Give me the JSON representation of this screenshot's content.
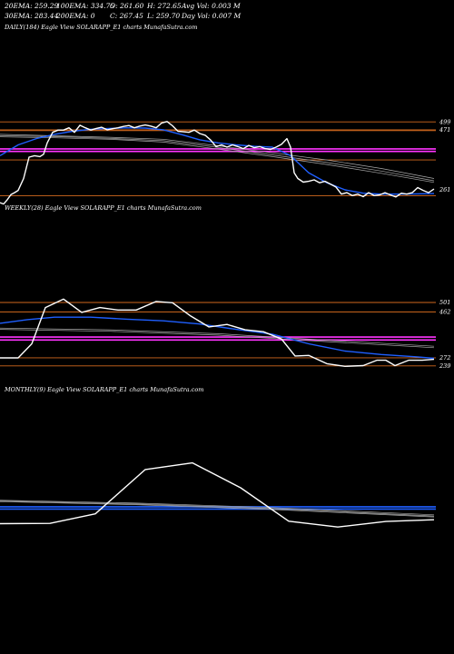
{
  "header": {
    "row1": [
      "20EMA: 259.29",
      "100EMA: 334.75",
      "O: 261.60",
      "H: 272.65",
      "Avg Vol: 0.003 M"
    ],
    "row2": [
      "30EMA: 283.44",
      "200EMA: 0",
      "C: 267.45",
      "L: 259.70",
      "Day Vol: 0.007 M"
    ]
  },
  "colors": {
    "background": "#000000",
    "price": "#ffffff",
    "ema_blue": "#1f5fff",
    "level_orange": "#d2691e",
    "level_magenta": "#ff33ff",
    "ma_gray": "#aaaaaa"
  },
  "chart_data": [
    {
      "type": "line",
      "title": "DAILY(184) Eagle  View  SOLARAPP_E1 charts MunafaSutra.com",
      "ylabels": [
        "499",
        "471",
        "261"
      ],
      "ylim": [
        145,
        640
      ],
      "levels": [
        {
          "value": 499,
          "color": "orange"
        },
        {
          "value": 471,
          "color": "orange"
        },
        {
          "value": 468,
          "color": "orange"
        },
        {
          "value": 404,
          "color": "magenta"
        },
        {
          "value": 395,
          "color": "magenta"
        },
        {
          "value": 365,
          "color": "orange"
        },
        {
          "value": 239,
          "color": "orange"
        }
      ],
      "series": [
        {
          "role": "close",
          "color": "white",
          "points": [
            [
              0,
              215
            ],
            [
              4,
              210
            ],
            [
              8,
              225
            ],
            [
              12,
              243
            ],
            [
              16,
              250
            ],
            [
              20,
              258
            ],
            [
              26,
              300
            ],
            [
              32,
              375
            ],
            [
              38,
              380
            ],
            [
              44,
              377
            ],
            [
              48,
              385
            ],
            [
              52,
              425
            ],
            [
              58,
              462
            ],
            [
              64,
              470
            ],
            [
              70,
              470
            ],
            [
              76,
              478
            ],
            [
              82,
              462
            ],
            [
              88,
              487
            ],
            [
              94,
              478
            ],
            [
              100,
              470
            ],
            [
              106,
              476
            ],
            [
              112,
              480
            ],
            [
              118,
              471
            ],
            [
              124,
              475
            ],
            [
              130,
              478
            ],
            [
              136,
              483
            ],
            [
              142,
              486
            ],
            [
              148,
              478
            ],
            [
              154,
              484
            ],
            [
              160,
              488
            ],
            [
              166,
              484
            ],
            [
              172,
              478
            ],
            [
              178,
              495
            ],
            [
              184,
              500
            ],
            [
              190,
              485
            ],
            [
              196,
              466
            ],
            [
              202,
              464
            ],
            [
              208,
              462
            ],
            [
              214,
              470
            ],
            [
              220,
              458
            ],
            [
              226,
              452
            ],
            [
              232,
              435
            ],
            [
              238,
              412
            ],
            [
              244,
              418
            ],
            [
              250,
              410
            ],
            [
              256,
              418
            ],
            [
              262,
              412
            ],
            [
              268,
              405
            ],
            [
              274,
              416
            ],
            [
              280,
              408
            ],
            [
              286,
              412
            ],
            [
              292,
              405
            ],
            [
              298,
              402
            ],
            [
              304,
              410
            ],
            [
              310,
              420
            ],
            [
              316,
              440
            ],
            [
              320,
              410
            ],
            [
              324,
              320
            ],
            [
              328,
              300
            ],
            [
              334,
              287
            ],
            [
              340,
              290
            ],
            [
              346,
              295
            ],
            [
              352,
              285
            ],
            [
              358,
              290
            ],
            [
              364,
              280
            ],
            [
              370,
              270
            ],
            [
              376,
              245
            ],
            [
              382,
              250
            ],
            [
              388,
              240
            ],
            [
              394,
              245
            ],
            [
              400,
              236
            ],
            [
              406,
              250
            ],
            [
              412,
              240
            ],
            [
              418,
              242
            ],
            [
              424,
              250
            ],
            [
              430,
              242
            ],
            [
              436,
              235
            ],
            [
              442,
              248
            ],
            [
              448,
              245
            ],
            [
              454,
              250
            ],
            [
              460,
              268
            ],
            [
              466,
              258
            ],
            [
              472,
              250
            ],
            [
              478,
              263
            ]
          ]
        },
        {
          "role": "ema_blue",
          "color": "blue",
          "points": [
            [
              0,
              380
            ],
            [
              20,
              418
            ],
            [
              40,
              440
            ],
            [
              60,
              455
            ],
            [
              80,
              466
            ],
            [
              100,
              473
            ],
            [
              120,
              476
            ],
            [
              140,
              478
            ],
            [
              160,
              477
            ],
            [
              180,
              471
            ],
            [
              200,
              454
            ],
            [
              220,
              436
            ],
            [
              240,
              425
            ],
            [
              260,
              418
            ],
            [
              280,
              413
            ],
            [
              300,
              410
            ],
            [
              320,
              380
            ],
            [
              340,
              320
            ],
            [
              360,
              285
            ],
            [
              380,
              260
            ],
            [
              400,
              248
            ],
            [
              420,
              245
            ],
            [
              440,
              245
            ],
            [
              460,
              246
            ],
            [
              478,
              247
            ]
          ]
        },
        {
          "role": "ma_gray_1",
          "color": "gray",
          "points": [
            [
              0,
              455
            ],
            [
              60,
              450
            ],
            [
              120,
              445
            ],
            [
              180,
              438
            ],
            [
              240,
              415
            ],
            [
              300,
              390
            ],
            [
              360,
              365
            ],
            [
              420,
              335
            ],
            [
              478,
              300
            ]
          ]
        },
        {
          "role": "ma_gray_2",
          "color": "gray",
          "points": [
            [
              0,
              450
            ],
            [
              60,
              447
            ],
            [
              120,
              441
            ],
            [
              180,
              433
            ],
            [
              240,
              409
            ],
            [
              300,
              383
            ],
            [
              360,
              356
            ],
            [
              420,
              326
            ],
            [
              478,
              292
            ]
          ]
        },
        {
          "role": "ma_gray_3",
          "color": "gray",
          "points": [
            [
              0,
              446
            ],
            [
              60,
              443
            ],
            [
              120,
              438
            ],
            [
              180,
              428
            ],
            [
              240,
              403
            ],
            [
              300,
              377
            ],
            [
              360,
              349
            ],
            [
              420,
              318
            ],
            [
              478,
              286
            ]
          ]
        }
      ]
    },
    {
      "type": "line",
      "title": "WEEKLY(28) Eagle  View  SOLARAPP_E1 charts MunafaSutra.com",
      "ylabels": [
        "501",
        "462",
        "272",
        "239"
      ],
      "ylim": [
        118,
        700
      ],
      "levels": [
        {
          "value": 501,
          "color": "orange"
        },
        {
          "value": 462,
          "color": "orange"
        },
        {
          "value": 358,
          "color": "magenta"
        },
        {
          "value": 346,
          "color": "magenta"
        },
        {
          "value": 272,
          "color": "orange"
        },
        {
          "value": 239,
          "color": "orange"
        }
      ],
      "series": [
        {
          "role": "close",
          "color": "white",
          "points": [
            [
              0,
              272
            ],
            [
              20,
              272
            ],
            [
              35,
              330
            ],
            [
              50,
              480
            ],
            [
              70,
              515
            ],
            [
              90,
              460
            ],
            [
              110,
              480
            ],
            [
              130,
              470
            ],
            [
              150,
              470
            ],
            [
              172,
              505
            ],
            [
              190,
              500
            ],
            [
              210,
              445
            ],
            [
              230,
              400
            ],
            [
              250,
              410
            ],
            [
              270,
              388
            ],
            [
              290,
              380
            ],
            [
              310,
              350
            ],
            [
              325,
              280
            ],
            [
              340,
              282
            ],
            [
              360,
              248
            ],
            [
              380,
              237
            ],
            [
              400,
              240
            ],
            [
              415,
              262
            ],
            [
              425,
              262
            ],
            [
              435,
              240
            ],
            [
              450,
              262
            ],
            [
              465,
              262
            ],
            [
              478,
              266
            ]
          ]
        },
        {
          "role": "ema_blue",
          "color": "blue",
          "points": [
            [
              0,
              415
            ],
            [
              30,
              430
            ],
            [
              60,
              440
            ],
            [
              100,
              440
            ],
            [
              140,
              432
            ],
            [
              180,
              425
            ],
            [
              220,
              412
            ],
            [
              260,
              390
            ],
            [
              300,
              370
            ],
            [
              340,
              330
            ],
            [
              380,
              300
            ],
            [
              420,
              286
            ],
            [
              460,
              276
            ],
            [
              478,
              270
            ]
          ]
        },
        {
          "role": "ma_gray_1",
          "color": "gray",
          "points": [
            [
              0,
              395
            ],
            [
              120,
              388
            ],
            [
              240,
              372
            ],
            [
              360,
              345
            ],
            [
              478,
              320
            ]
          ]
        },
        {
          "role": "ma_gray_2",
          "color": "gray",
          "points": [
            [
              0,
              390
            ],
            [
              120,
              382
            ],
            [
              240,
              366
            ],
            [
              360,
              339
            ],
            [
              478,
              314
            ]
          ]
        }
      ]
    },
    {
      "type": "line",
      "title": "MONTHLY(9) Eagle  View  SOLARAPP_E1 charts MunafaSutra.com",
      "ylabels": [],
      "ylim": [
        0,
        900
      ],
      "levels": [
        {
          "value": 385,
          "color": "blue"
        },
        {
          "value": 370,
          "color": "blue"
        }
      ],
      "series": [
        {
          "role": "close",
          "color": "white",
          "points": [
            [
              0,
              270
            ],
            [
              55,
              272
            ],
            [
              105,
              337
            ],
            [
              160,
              640
            ],
            [
              212,
              685
            ],
            [
              265,
              515
            ],
            [
              318,
              287
            ],
            [
              372,
              247
            ],
            [
              425,
              285
            ],
            [
              478,
              297
            ]
          ]
        },
        {
          "role": "ma_gray_1",
          "color": "gray",
          "points": [
            [
              0,
              430
            ],
            [
              150,
              410
            ],
            [
              300,
              380
            ],
            [
              478,
              330
            ]
          ]
        },
        {
          "role": "ma_gray_2",
          "color": "gray",
          "points": [
            [
              0,
              425
            ],
            [
              150,
              405
            ],
            [
              300,
              373
            ],
            [
              478,
              322
            ]
          ]
        },
        {
          "role": "ma_gray_3",
          "color": "gray",
          "points": [
            [
              0,
              420
            ],
            [
              150,
              400
            ],
            [
              300,
              367
            ],
            [
              478,
              316
            ]
          ]
        }
      ]
    }
  ]
}
